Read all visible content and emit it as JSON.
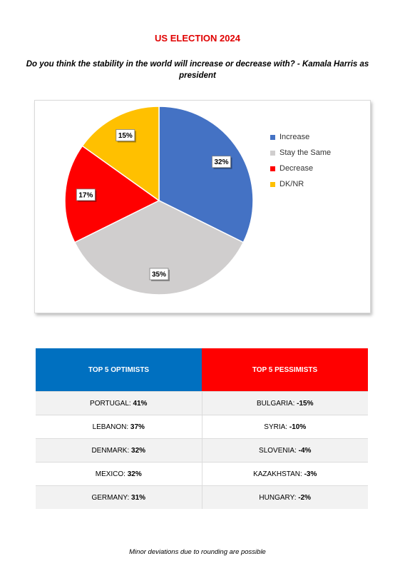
{
  "title": "US ELECTION 2024",
  "question": "Do you think the stability in the world will increase or decrease with? - Kamala Harris as president",
  "chart_data": {
    "type": "pie",
    "categories": [
      "Increase",
      "Stay the Same",
      "Decrease",
      "DK/NR"
    ],
    "values": [
      32,
      35,
      17,
      15
    ],
    "labels": [
      "32%",
      "35%",
      "17%",
      "15%"
    ],
    "colors": [
      "#4472c4",
      "#d0cece",
      "#ff0000",
      "#ffc000"
    ],
    "legend_position": "right"
  },
  "table": {
    "optimists_header": "TOP 5 OPTIMISTS",
    "pessimists_header": "TOP 5 PESSIMISTS",
    "optimists": [
      {
        "country": "PORTUGAL:",
        "value": "41%"
      },
      {
        "country": "LEBANON:",
        "value": "37%"
      },
      {
        "country": "DENMARK:",
        "value": "32%"
      },
      {
        "country": "MEXICO:",
        "value": "32%"
      },
      {
        "country": "GERMANY:",
        "value": "31%"
      }
    ],
    "pessimists": [
      {
        "country": "BULGARIA:",
        "value": "-15%"
      },
      {
        "country": "SYRIA:",
        "value": "-10%"
      },
      {
        "country": "SLOVENIA:",
        "value": "-4%"
      },
      {
        "country": "KAZAKHSTAN:",
        "value": "-3%"
      },
      {
        "country": "HUNGARY:",
        "value": "-2%"
      }
    ]
  },
  "footnote": "Minor deviations due to rounding are possible"
}
